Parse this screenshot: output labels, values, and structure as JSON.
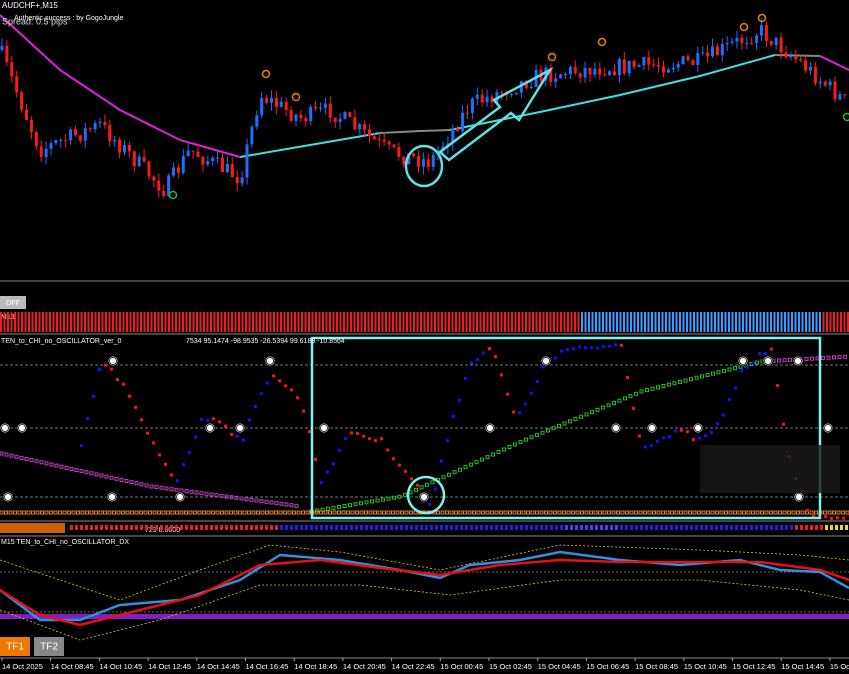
{
  "header": {
    "symbol": "AUDCHF+,M15",
    "spread": "Spread: 0.5 pips",
    "credit": "Authentic success : by GogoJungle"
  },
  "buttons": {
    "off": "OFF",
    "tf1": "TF1",
    "tf2": "TF2"
  },
  "strip": {
    "label": "M15"
  },
  "indicator": {
    "title": "TEN_to_CHI_no_OSCILLATOR_ver_0",
    "values": "7534 95.1474 -98.9535 -26.5394 99.6189 -10.8564",
    "status": "723 0.0000"
  },
  "oscillator_dx": {
    "title": "M15 TEN_to_CHI_no_OSCILLATOR_DX"
  },
  "time_axis": [
    "14 Oct 2025",
    "14 Oct 08:45",
    "14 Oct 10:45",
    "14 Oct 12:45",
    "14 Oct 14:45",
    "14 Oct 16:45",
    "14 Oct 18:45",
    "14 Oct 20:45",
    "14 Oct 22:45",
    "15 Oct 00:45",
    "15 Oct 02:45",
    "15 Oct 04:45",
    "15 Oct 06:45",
    "15 Oct 08:45",
    "15 Oct 10:45",
    "15 Oct 12:45",
    "15 Oct 14:45",
    "15 Oct 16"
  ]
}
